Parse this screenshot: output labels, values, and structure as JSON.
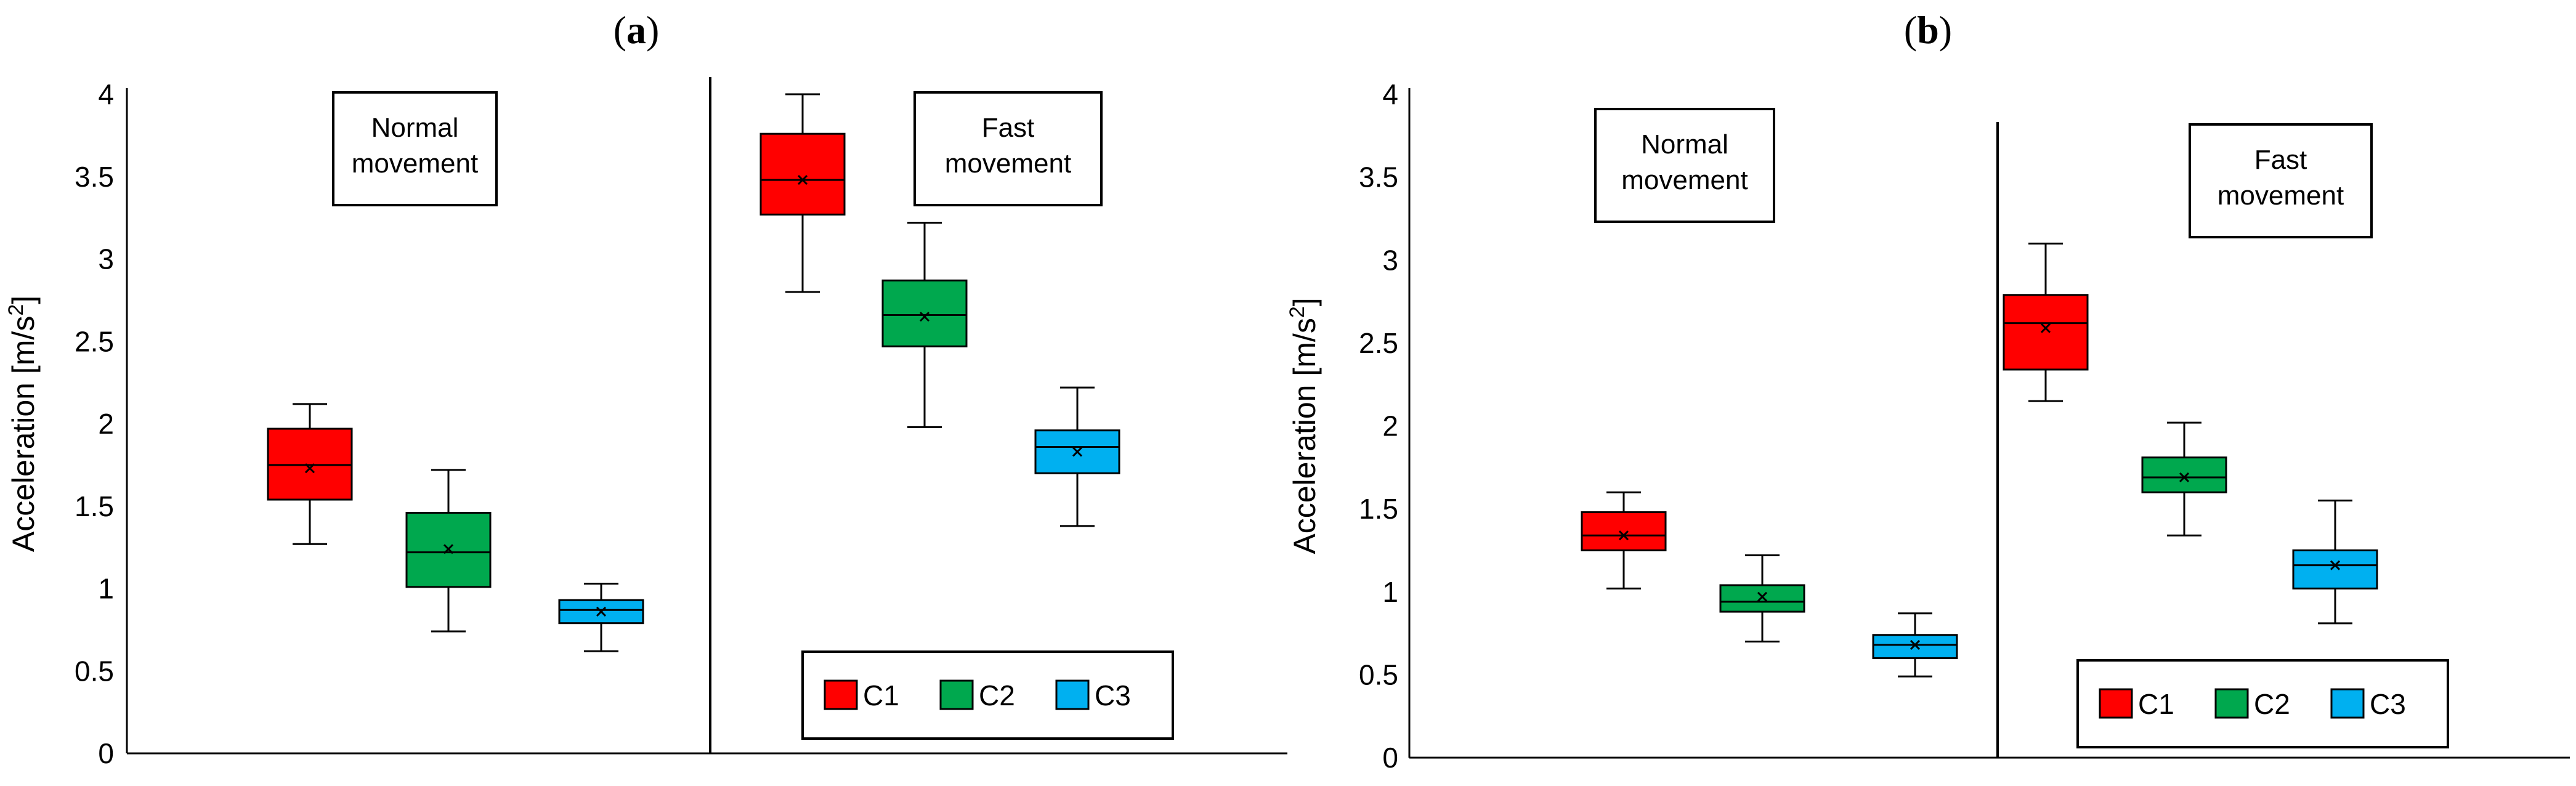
{
  "colors": {
    "C1": "#ff0000",
    "C2": "#00a84e",
    "C3": "#00b0f0"
  },
  "chart_data": [
    {
      "type": "box",
      "panel": "a",
      "title_parts": [
        "(",
        "a",
        ")"
      ],
      "ylabel": "Acceleration [m/s²]",
      "ylabel_parts": [
        "Acceleration [m/s",
        "2",
        "]"
      ],
      "ylim": [
        0,
        4
      ],
      "yticks": [
        "0",
        "0.5",
        "1",
        "1.5",
        "2",
        "2.5",
        "3",
        "3.5",
        "4"
      ],
      "groups": [
        {
          "label_lines": [
            "Normal",
            "movement"
          ],
          "boxes": [
            {
              "series": "C1",
              "min": 1.27,
              "q1": 1.54,
              "median": 1.75,
              "q3": 1.97,
              "max": 2.12,
              "mean": 1.73
            },
            {
              "series": "C2",
              "min": 0.74,
              "q1": 1.01,
              "median": 1.22,
              "q3": 1.46,
              "max": 1.72,
              "mean": 1.24
            },
            {
              "series": "C3",
              "min": 0.62,
              "q1": 0.79,
              "median": 0.87,
              "q3": 0.93,
              "max": 1.03,
              "mean": 0.86
            }
          ]
        },
        {
          "label_lines": [
            "Fast",
            "movement"
          ],
          "boxes": [
            {
              "series": "C1",
              "min": 2.8,
              "q1": 3.27,
              "median": 3.48,
              "q3": 3.76,
              "max": 4.0,
              "mean": 3.48
            },
            {
              "series": "C2",
              "min": 1.98,
              "q1": 2.47,
              "median": 2.66,
              "q3": 2.87,
              "max": 3.22,
              "mean": 2.65
            },
            {
              "series": "C3",
              "min": 1.38,
              "q1": 1.7,
              "median": 1.86,
              "q3": 1.96,
              "max": 2.22,
              "mean": 1.83
            }
          ]
        }
      ],
      "legend": [
        "C1",
        "C2",
        "C3"
      ],
      "legend_position": "bottom-right"
    },
    {
      "type": "box",
      "panel": "b",
      "title_parts": [
        "(",
        "b",
        ")"
      ],
      "ylabel": "Acceleration [m/s²]",
      "ylabel_parts": [
        "Acceleration [m/s",
        "2",
        "]"
      ],
      "ylim": [
        0,
        4
      ],
      "yticks": [
        "0",
        "0.5",
        "1",
        "1.5",
        "2",
        "2.5",
        "3",
        "3.5",
        "4"
      ],
      "groups": [
        {
          "label_lines": [
            "Normal",
            "movement"
          ],
          "boxes": [
            {
              "series": "C1",
              "min": 1.02,
              "q1": 1.25,
              "median": 1.34,
              "q3": 1.48,
              "max": 1.6,
              "mean": 1.34
            },
            {
              "series": "C2",
              "min": 0.7,
              "q1": 0.88,
              "median": 0.94,
              "q3": 1.04,
              "max": 1.22,
              "mean": 0.97
            },
            {
              "series": "C3",
              "min": 0.49,
              "q1": 0.6,
              "median": 0.68,
              "q3": 0.74,
              "max": 0.87,
              "mean": 0.68
            }
          ]
        },
        {
          "label_lines": [
            "Fast",
            "movement"
          ],
          "boxes": [
            {
              "series": "C1",
              "min": 2.15,
              "q1": 2.34,
              "median": 2.62,
              "q3": 2.79,
              "max": 3.1,
              "mean": 2.59
            },
            {
              "series": "C2",
              "min": 1.34,
              "q1": 1.6,
              "median": 1.69,
              "q3": 1.81,
              "max": 2.02,
              "mean": 1.69
            },
            {
              "series": "C3",
              "min": 0.81,
              "q1": 1.02,
              "median": 1.16,
              "q3": 1.25,
              "max": 1.55,
              "mean": 1.16
            }
          ]
        }
      ],
      "legend": [
        "C1",
        "C2",
        "C3"
      ],
      "legend_position": "bottom-right"
    }
  ]
}
